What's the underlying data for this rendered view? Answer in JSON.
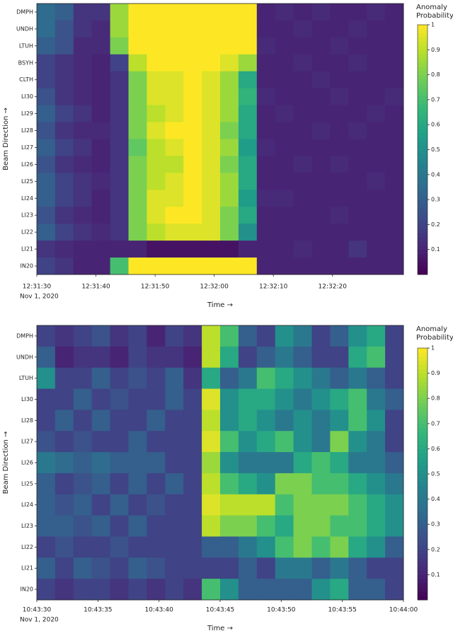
{
  "chart_data": [
    {
      "type": "heatmap",
      "x_label": "Time →",
      "y_label": "Beam Direction →",
      "x_sublabel": "Nov 1, 2020",
      "colorbar_label": [
        "Anomaly",
        "Probability"
      ],
      "colormap": "viridis",
      "clim": [
        0,
        1
      ],
      "cticks": [
        0.1,
        0.2,
        0.3,
        0.4,
        0.5,
        0.6,
        0.7,
        0.8,
        0.9,
        1
      ],
      "xlim": [
        45090,
        45152
      ],
      "xticks": [
        {
          "value": 45090,
          "label": "12:31:30"
        },
        {
          "value": 45100,
          "label": "12:31:40"
        },
        {
          "value": 45110,
          "label": "12:31:50"
        },
        {
          "value": 45120,
          "label": "12:32:00"
        },
        {
          "value": 45130,
          "label": "12:32:10"
        },
        {
          "value": 45140,
          "label": "12:32:20"
        }
      ],
      "categories": [
        "DMPH",
        "UNDH",
        "LTUH",
        "BSYH",
        "CLTH",
        "LI30",
        "LI29",
        "LI28",
        "LI27",
        "LI26",
        "LI25",
        "LI24",
        "LI23",
        "LI22",
        "LI21",
        "IN20"
      ],
      "values": [
        [
          0.35,
          0.3,
          0.15,
          0.15,
          0.85,
          1,
          1,
          1,
          1,
          1,
          1,
          1,
          0.1,
          0.12,
          0.1,
          0.12,
          0.1,
          0.1,
          0.12,
          0.1
        ],
        [
          0.35,
          0.25,
          0.15,
          0.12,
          0.85,
          1,
          1,
          1,
          1,
          1,
          1,
          1,
          0.1,
          0.1,
          0.12,
          0.1,
          0.1,
          0.12,
          0.1,
          0.1
        ],
        [
          0.3,
          0.25,
          0.12,
          0.12,
          0.8,
          1,
          1,
          1,
          1,
          1,
          1,
          1,
          0.12,
          0.1,
          0.1,
          0.1,
          0.12,
          0.1,
          0.1,
          0.1
        ],
        [
          0.2,
          0.15,
          0.12,
          0.1,
          0.2,
          0.9,
          1,
          1,
          1,
          1,
          0.95,
          0.85,
          0.1,
          0.1,
          0.12,
          0.1,
          0.1,
          0.12,
          0.1,
          0.1
        ],
        [
          0.2,
          0.15,
          0.12,
          0.1,
          0.15,
          0.8,
          0.95,
          0.95,
          1,
          0.95,
          0.85,
          0.6,
          0.1,
          0.1,
          0.1,
          0.12,
          0.1,
          0.1,
          0.1,
          0.1
        ],
        [
          0.25,
          0.15,
          0.12,
          0.1,
          0.15,
          0.8,
          0.95,
          0.95,
          1,
          0.95,
          0.85,
          0.65,
          0.12,
          0.1,
          0.1,
          0.1,
          0.12,
          0.1,
          0.1,
          0.12
        ],
        [
          0.3,
          0.2,
          0.15,
          0.1,
          0.15,
          0.8,
          0.9,
          0.95,
          1,
          0.95,
          0.85,
          0.6,
          0.1,
          0.12,
          0.1,
          0.1,
          0.1,
          0.1,
          0.12,
          0.1
        ],
        [
          0.25,
          0.15,
          0.12,
          0.12,
          0.15,
          0.8,
          0.95,
          1,
          1,
          0.95,
          0.8,
          0.6,
          0.1,
          0.1,
          0.1,
          0.12,
          0.1,
          0.12,
          0.1,
          0.1
        ],
        [
          0.3,
          0.2,
          0.15,
          0.1,
          0.15,
          0.75,
          0.9,
          0.95,
          1,
          0.95,
          0.85,
          0.55,
          0.12,
          0.1,
          0.1,
          0.1,
          0.1,
          0.1,
          0.1,
          0.1
        ],
        [
          0.25,
          0.15,
          0.12,
          0.1,
          0.15,
          0.8,
          0.9,
          0.9,
          1,
          0.95,
          0.8,
          0.6,
          0.1,
          0.1,
          0.12,
          0.1,
          0.12,
          0.1,
          0.1,
          0.1
        ],
        [
          0.3,
          0.2,
          0.15,
          0.12,
          0.15,
          0.8,
          0.9,
          0.95,
          1,
          0.95,
          0.85,
          0.6,
          0.1,
          0.1,
          0.1,
          0.1,
          0.1,
          0.1,
          0.12,
          0.1
        ],
        [
          0.3,
          0.2,
          0.15,
          0.1,
          0.15,
          0.8,
          0.95,
          0.95,
          1,
          0.95,
          0.85,
          0.55,
          0.12,
          0.12,
          0.1,
          0.1,
          0.1,
          0.1,
          0.1,
          0.1
        ],
        [
          0.25,
          0.15,
          0.12,
          0.1,
          0.15,
          0.8,
          0.95,
          1,
          1,
          0.95,
          0.8,
          0.6,
          0.1,
          0.1,
          0.1,
          0.1,
          0.12,
          0.1,
          0.1,
          0.1
        ],
        [
          0.3,
          0.2,
          0.15,
          0.12,
          0.15,
          0.8,
          0.9,
          0.95,
          0.95,
          0.95,
          0.8,
          0.5,
          0.1,
          0.1,
          0.1,
          0.1,
          0.1,
          0.1,
          0.1,
          0.1
        ],
        [
          0.15,
          0.12,
          0.1,
          0.1,
          0.1,
          0.1,
          0.05,
          0.05,
          0.05,
          0.05,
          0.05,
          0.1,
          0.1,
          0.1,
          0.12,
          0.1,
          0.1,
          0.15,
          0.1,
          0.1
        ],
        [
          0.2,
          0.15,
          0.1,
          0.1,
          0.7,
          1,
          1,
          1,
          1,
          1,
          1,
          1,
          0.1,
          0.1,
          0.1,
          0.1,
          0.1,
          0.1,
          0.1,
          0.1
        ]
      ]
    },
    {
      "type": "heatmap",
      "x_label": "Time →",
      "y_label": "Beam Direction →",
      "x_sublabel": "Nov 1, 2020",
      "colorbar_label": [
        "Anomaly",
        "Probability"
      ],
      "colormap": "viridis",
      "clim": [
        0,
        1
      ],
      "cticks": [
        0.1,
        0.2,
        0.3,
        0.4,
        0.5,
        0.6,
        0.7,
        0.8,
        0.9,
        1
      ],
      "xlim": [
        38610,
        38640
      ],
      "xticks": [
        {
          "value": 38610,
          "label": "10:43:30"
        },
        {
          "value": 38615,
          "label": "10:43:35"
        },
        {
          "value": 38620,
          "label": "10:43:40"
        },
        {
          "value": 38625,
          "label": "10:43:45"
        },
        {
          "value": 38630,
          "label": "10:43:50"
        },
        {
          "value": 38635,
          "label": "10:43:55"
        },
        {
          "value": 38640,
          "label": "10:44:00"
        }
      ],
      "categories": [
        "DMPH",
        "UNDH",
        "LTUH",
        "LI30",
        "LI28",
        "LI27",
        "LI26",
        "LI25",
        "LI24",
        "LI23",
        "LI22",
        "LI21",
        "IN20"
      ],
      "values": [
        [
          0.2,
          0.15,
          0.2,
          0.25,
          0.15,
          0.2,
          0.1,
          0.2,
          0.15,
          0.9,
          0.7,
          0.3,
          0.2,
          0.5,
          0.4,
          0.2,
          0.3,
          0.5,
          0.6,
          0.2
        ],
        [
          0.3,
          0.1,
          0.15,
          0.15,
          0.1,
          0.2,
          0.15,
          0.15,
          0.1,
          0.9,
          0.6,
          0.2,
          0.3,
          0.4,
          0.3,
          0.2,
          0.2,
          0.6,
          0.7,
          0.2
        ],
        [
          0.5,
          0.2,
          0.2,
          0.3,
          0.2,
          0.25,
          0.2,
          0.3,
          0.15,
          0.6,
          0.3,
          0.4,
          0.7,
          0.6,
          0.5,
          0.4,
          0.3,
          0.4,
          0.3,
          0.2
        ],
        [
          0.2,
          0.2,
          0.3,
          0.2,
          0.25,
          0.2,
          0.2,
          0.3,
          0.2,
          0.95,
          0.5,
          0.6,
          0.6,
          0.5,
          0.4,
          0.5,
          0.6,
          0.7,
          0.4,
          0.3
        ],
        [
          0.2,
          0.3,
          0.2,
          0.3,
          0.2,
          0.2,
          0.3,
          0.2,
          0.2,
          0.9,
          0.5,
          0.6,
          0.5,
          0.4,
          0.5,
          0.4,
          0.5,
          0.7,
          0.5,
          0.2
        ],
        [
          0.25,
          0.2,
          0.25,
          0.2,
          0.2,
          0.3,
          0.2,
          0.2,
          0.2,
          0.95,
          0.7,
          0.5,
          0.6,
          0.7,
          0.5,
          0.4,
          0.8,
          0.5,
          0.4,
          0.2
        ],
        [
          0.4,
          0.35,
          0.3,
          0.35,
          0.3,
          0.3,
          0.3,
          0.2,
          0.2,
          0.85,
          0.5,
          0.4,
          0.4,
          0.4,
          0.6,
          0.7,
          0.6,
          0.4,
          0.4,
          0.3
        ],
        [
          0.3,
          0.2,
          0.25,
          0.3,
          0.2,
          0.3,
          0.2,
          0.3,
          0.2,
          0.9,
          0.7,
          0.6,
          0.5,
          0.8,
          0.8,
          0.7,
          0.7,
          0.6,
          0.5,
          0.4
        ],
        [
          0.3,
          0.25,
          0.3,
          0.2,
          0.3,
          0.2,
          0.25,
          0.2,
          0.2,
          0.95,
          0.9,
          0.9,
          0.9,
          0.7,
          0.8,
          0.8,
          0.8,
          0.7,
          0.6,
          0.5
        ],
        [
          0.3,
          0.3,
          0.25,
          0.3,
          0.2,
          0.3,
          0.2,
          0.2,
          0.2,
          0.9,
          0.8,
          0.8,
          0.7,
          0.6,
          0.8,
          0.8,
          0.7,
          0.7,
          0.6,
          0.5
        ],
        [
          0.2,
          0.25,
          0.2,
          0.2,
          0.25,
          0.2,
          0.2,
          0.2,
          0.2,
          0.3,
          0.3,
          0.4,
          0.5,
          0.7,
          0.8,
          0.7,
          0.8,
          0.6,
          0.5,
          0.3
        ],
        [
          0.3,
          0.2,
          0.3,
          0.25,
          0.2,
          0.3,
          0.25,
          0.2,
          0.2,
          0.2,
          0.2,
          0.3,
          0.2,
          0.4,
          0.4,
          0.3,
          0.4,
          0.3,
          0.2,
          0.2
        ],
        [
          0.2,
          0.15,
          0.2,
          0.2,
          0.15,
          0.2,
          0.15,
          0.2,
          0.15,
          0.7,
          0.5,
          0.3,
          0.3,
          0.3,
          0.3,
          0.5,
          0.6,
          0.3,
          0.3,
          0.2
        ]
      ]
    }
  ]
}
